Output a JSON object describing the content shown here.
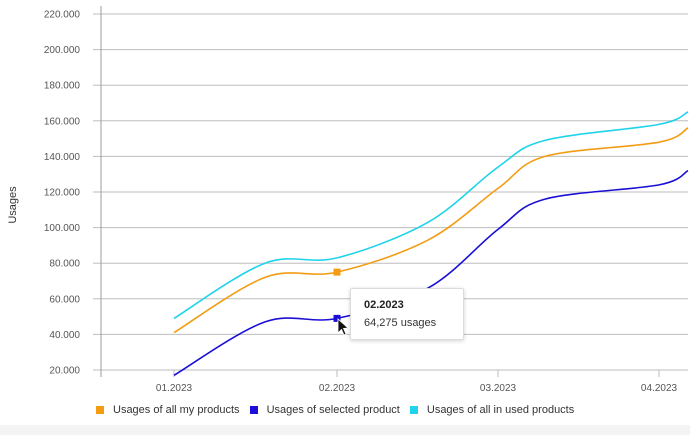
{
  "chart_data": {
    "type": "line",
    "title": "",
    "xlabel": "",
    "ylabel": "Usages",
    "x_ticks": [
      "01.2023",
      "02.2023",
      "03.2023",
      "04.2023"
    ],
    "y_ticks": [
      "20.000",
      "40.000",
      "60.000",
      "80.000",
      "100.000",
      "120.000",
      "140.000",
      "160.000",
      "180.000",
      "200.000",
      "220.000"
    ],
    "ylim": [
      20000,
      220000
    ],
    "grid": "horizontal",
    "legend": "bottom-left",
    "series": [
      {
        "name": "Usages of all my products",
        "color": "#f39c12",
        "x": [
          "01.2023",
          "01.2023",
          "02.2023",
          "02.2023",
          "03.2023",
          "03.2023",
          "04.2023",
          "04.2023"
        ],
        "points": [
          {
            "x": "01.2023",
            "y": 41000
          },
          {
            "x": "01.2023",
            "y": 72000
          },
          {
            "x": "02.2023",
            "y": 75000
          },
          {
            "x": "02.2023",
            "y": 93000
          },
          {
            "x": "03.2023",
            "y": 122000
          },
          {
            "x": "03.2023",
            "y": 140000
          },
          {
            "x": "04.2023",
            "y": 148000
          },
          {
            "x": "04.2023",
            "y": 156000
          }
        ]
      },
      {
        "name": "Usages of selected product",
        "color": "#1a0fd6",
        "points": [
          {
            "x": "01.2023",
            "y": 17000
          },
          {
            "x": "01.2023",
            "y": 47000
          },
          {
            "x": "02.2023",
            "y": 49000
          },
          {
            "x": "02.2023",
            "y": 66000
          },
          {
            "x": "03.2023",
            "y": 99000
          },
          {
            "x": "03.2023",
            "y": 116000
          },
          {
            "x": "04.2023",
            "y": 124000
          },
          {
            "x": "04.2023",
            "y": 132000
          }
        ]
      },
      {
        "name": "Usages of all in used products",
        "color": "#1fd3eb",
        "points": [
          {
            "x": "01.2023",
            "y": 49000
          },
          {
            "x": "01.2023",
            "y": 80000
          },
          {
            "x": "02.2023",
            "y": 83000
          },
          {
            "x": "02.2023",
            "y": 103000
          },
          {
            "x": "03.2023",
            "y": 134000
          },
          {
            "x": "03.2023",
            "y": 149000
          },
          {
            "x": "04.2023",
            "y": 158000
          },
          {
            "x": "04.2023",
            "y": 165000
          }
        ]
      }
    ],
    "markers": [
      {
        "series": "Usages of all my products",
        "x": "02.2023",
        "y": 75000,
        "color": "#f39c12"
      },
      {
        "series": "Usages of selected product",
        "x": "02.2023",
        "y": 49000,
        "color": "#1a0fd6"
      }
    ],
    "tooltip": {
      "title": "02.2023",
      "value": "64,275 usages"
    }
  }
}
